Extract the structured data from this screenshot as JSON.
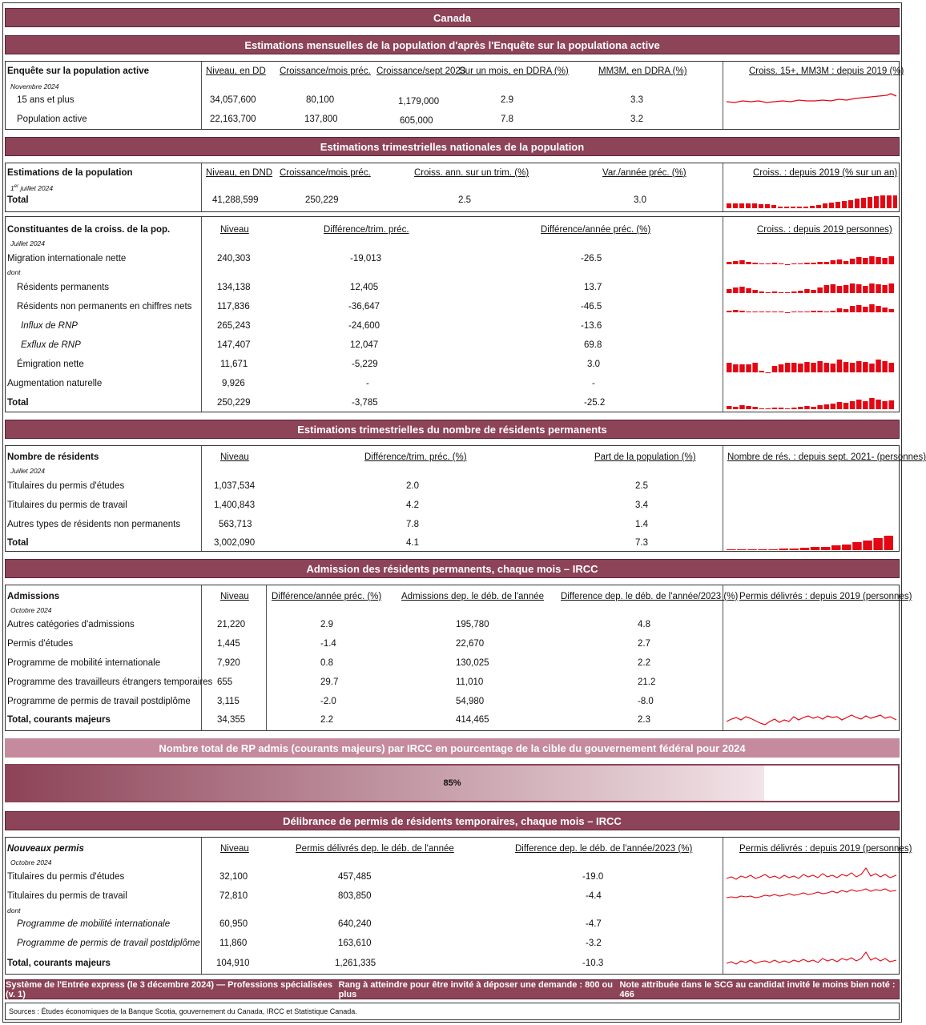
{
  "title": "Canada",
  "colors": {
    "maroon": "#8d4358",
    "red": "#e30613",
    "pink": "#c58a9d"
  },
  "lfs": {
    "band": "Estimations mensuelles de la population d'après l'Enquête sur la populationa active",
    "label": "Enquête sur la population active",
    "date": "Novembre 2024",
    "headers": [
      "Niveau, en DD",
      "Croissance/mois préc.",
      "Croissance/sept 2023",
      "Sur un mois, en DDRA (%)",
      "MM3M, en DDRA (%)"
    ],
    "chart_title": "Croiss. 15+, MM3M : depuis 2019 (%)",
    "rows": [
      {
        "label": "15 ans et plus",
        "v": [
          "34,057,600",
          "80,100",
          "1,179,000",
          "2.9",
          "3.3"
        ]
      },
      {
        "label": "Population active",
        "v": [
          "22,163,700",
          "137,800",
          "605,000",
          "7.8",
          "3.2"
        ]
      }
    ]
  },
  "qpop": {
    "band": "Estimations trimestrielles nationales de la population",
    "label": "Estimations de la population",
    "date_sup": "er",
    "date_pre": "1",
    "date_post": " juillet 2024",
    "headers": [
      "Niveau, en DND",
      "Croissance/mois préc.",
      "Croiss. ann. sur un trim. (%)",
      "Var./année préc. (%)"
    ],
    "chart_title": "Croiss. : depuis 2019 (% sur un an)",
    "total": {
      "label": "Total",
      "v": [
        "41,288,599",
        "250,229",
        "2.5",
        "3.0"
      ]
    }
  },
  "comp": {
    "label": "Constituantes de la croiss. de la pop.",
    "date": "Juillet 2024",
    "headers": [
      "Niveau",
      "Différence/trim. préc.",
      "Différence/année préc. (%)"
    ],
    "chart_title": "Croiss. : depuis 2019 personnes)",
    "dont": "dont",
    "rows": [
      {
        "label": "Migration internationale nette",
        "v": [
          "240,303",
          "-19,013",
          "-26.5"
        ]
      },
      {
        "label": "Résidents permanents",
        "v": [
          "134,138",
          "12,405",
          "13.7"
        ]
      },
      {
        "label": "Résidents non permanents en chiffres nets",
        "v": [
          "117,836",
          "-36,647",
          "-46.5"
        ]
      },
      {
        "label": "Influx de RNP",
        "v": [
          "265,243",
          "-24,600",
          "-13.6"
        ]
      },
      {
        "label": "Exflux de RNP",
        "v": [
          "147,407",
          "12,047",
          "69.8"
        ]
      },
      {
        "label": "Émigration nette",
        "v": [
          "11,671",
          "-5,229",
          "3.0"
        ]
      },
      {
        "label": "Augmentation naturelle",
        "v": [
          "9,926",
          "-",
          "-"
        ]
      },
      {
        "label": "Total",
        "v": [
          "250,229",
          "-3,785",
          "-25.2"
        ]
      }
    ]
  },
  "npr": {
    "band": "Estimations trimestrielles du nombre de résidents permanents",
    "label": "Nombre de résidents",
    "date": "Juillet 2024",
    "headers": [
      "Niveau",
      "Différence/trim. préc. (%)",
      "Part de la population (%)"
    ],
    "chart_title": "Nombre de rés. : depuis sept. 2021- (personnes)",
    "rows": [
      {
        "label": "Titulaires du permis d'études",
        "v": [
          "1,037,534",
          "2.0",
          "2.5"
        ]
      },
      {
        "label": "Titulaires du permis de travail",
        "v": [
          "1,400,843",
          "4.2",
          "3.4"
        ]
      },
      {
        "label": "Autres types de résidents non permanents",
        "v": [
          "563,713",
          "7.8",
          "1.4"
        ]
      },
      {
        "label": "Total",
        "v": [
          "3,002,090",
          "4.1",
          "7.3"
        ]
      }
    ]
  },
  "adm": {
    "band": "Admission des résidents permanents, chaque mois – IRCC",
    "label": "Admissions",
    "date": "Octobre 2024",
    "headers": [
      "Niveau",
      "Différence/année préc. (%)",
      "Admissions dep. le déb. de l'année",
      "Difference dep. le déb. de l'année/2023 (%)"
    ],
    "chart_title": "Permis délivrés : depuis 2019 (personnes)",
    "rows": [
      {
        "label": "Autres catégories d'admissions",
        "v": [
          "21,220",
          "2.9",
          "195,780",
          "4.8"
        ]
      },
      {
        "label": "Permis d'études",
        "v": [
          "1,445",
          "-1.4",
          "22,670",
          "2.7"
        ]
      },
      {
        "label": "Programme de mobilité internationale",
        "v": [
          "7,920",
          "0.8",
          "130,025",
          "2.2"
        ]
      },
      {
        "label": "Programme des travailleurs étrangers temporaires",
        "v": [
          "655",
          "29.7",
          "11,010",
          "21.2"
        ]
      },
      {
        "label": "Programme de permis de travail postdiplôme",
        "v": [
          "3,115",
          "-2.0",
          "54,980",
          "-8.0"
        ]
      },
      {
        "label": "Total, courants majeurs",
        "v": [
          "34,355",
          "2.2",
          "414,465",
          "2.3"
        ]
      }
    ]
  },
  "target": {
    "band": "Nombre total de RP admis (courants majeurs) par IRCC en pourcentage de la cible du gouvernement fédéral pour 2024",
    "label": "85%",
    "value": 0.85
  },
  "tmp": {
    "band": "Délibrance de permis de résidents temporaires, chaque mois – IRCC",
    "label": "Nouveaux permis",
    "date": "Octobre 2024",
    "headers": [
      "Niveau",
      "Permis délivrés dep. le déb. de l'année",
      "Difference dep. le déb. de l'année/2023 (%)"
    ],
    "chart_title": "Permis délivrés : depuis 2019 (personnes)",
    "dont": "dont",
    "rows": [
      {
        "label": "Titulaires du permis d'études",
        "v": [
          "32,100",
          "457,485",
          "-19.0"
        ]
      },
      {
        "label": "Titulaires du permis de travail",
        "v": [
          "72,810",
          "803,850",
          "-4.4"
        ]
      },
      {
        "label": "Programme de mobilité internationale",
        "v": [
          "60,950",
          "640,240",
          "-4.7"
        ]
      },
      {
        "label": "Programme de permis de travail postdiplôme",
        "v": [
          "11,860",
          "163,610",
          "-3.2"
        ]
      },
      {
        "label": "Total, courants majeurs",
        "v": [
          "104,910",
          "1,261,335",
          "-10.3"
        ]
      }
    ]
  },
  "footer": {
    "a": "Système de l'Entrée express (le 3 décembre 2024) — Professions spécialisées (v. 1)",
    "b": "Rang à atteindre pour être invité à déposer une demande : 800 ou plus",
    "c": "Note attribuée dans le SCG au candidat invité le moins bien noté : 466"
  },
  "sources": "Sources : Études économiques de la Banque Scotia, gouvernement du Canada, IRCC et Statistique Canada."
}
